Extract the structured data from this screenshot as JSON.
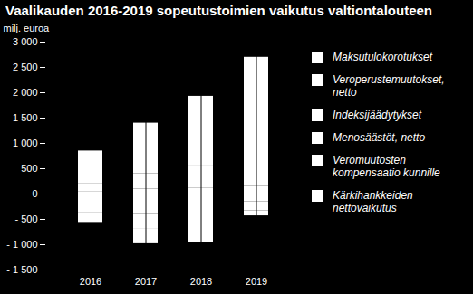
{
  "chart_data": {
    "type": "bar",
    "title": "Vaalikauden 2016-2019 sopeutustoimien vaikutus valtiontalouteen",
    "y_label": "milj. euroa",
    "categories": [
      "2016",
      "2017",
      "2018",
      "2019"
    ],
    "stacked": true,
    "legend": "right",
    "series": [
      {
        "name": "Maksutulokorotukset",
        "color": "#ffffff",
        "values": [
          50,
          100,
          120,
          150
        ]
      },
      {
        "name": "Veroperustemuutokset, netto",
        "color": "#ffffff",
        "values": [
          -200,
          -400,
          -500,
          -150
        ]
      },
      {
        "name": "Indeksijäädytykset",
        "color": "#ffffff",
        "values": [
          150,
          300,
          450,
          600
        ]
      },
      {
        "name": "Menosäästöt, netto",
        "color": "#ffffff",
        "values": [
          650,
          1000,
          1360,
          1950
        ]
      },
      {
        "name": "Veromuutosten kompensaatio kunnille",
        "color": "#ffffff",
        "values": [
          -160,
          -280,
          -250,
          -180
        ]
      },
      {
        "name": "Kärkihankkeiden nettovaikutus",
        "color": "#ffffff",
        "values": [
          -200,
          -300,
          -200,
          -100
        ]
      }
    ],
    "ylim": [
      -1500,
      3000
    ],
    "yticks": [
      {
        "value": -1500,
        "label": "- 1 500"
      },
      {
        "value": -1000,
        "label": "- 1 000"
      },
      {
        "value": -500,
        "label": "- 500"
      },
      0,
      500,
      {
        "value": 1000,
        "label": "1 000"
      },
      {
        "value": 1500,
        "label": "1 500"
      },
      {
        "value": 2000,
        "label": "2 000"
      },
      {
        "value": 2500,
        "label": "2 500"
      },
      {
        "value": 3000,
        "label": "3 000"
      }
    ],
    "grid": false
  }
}
